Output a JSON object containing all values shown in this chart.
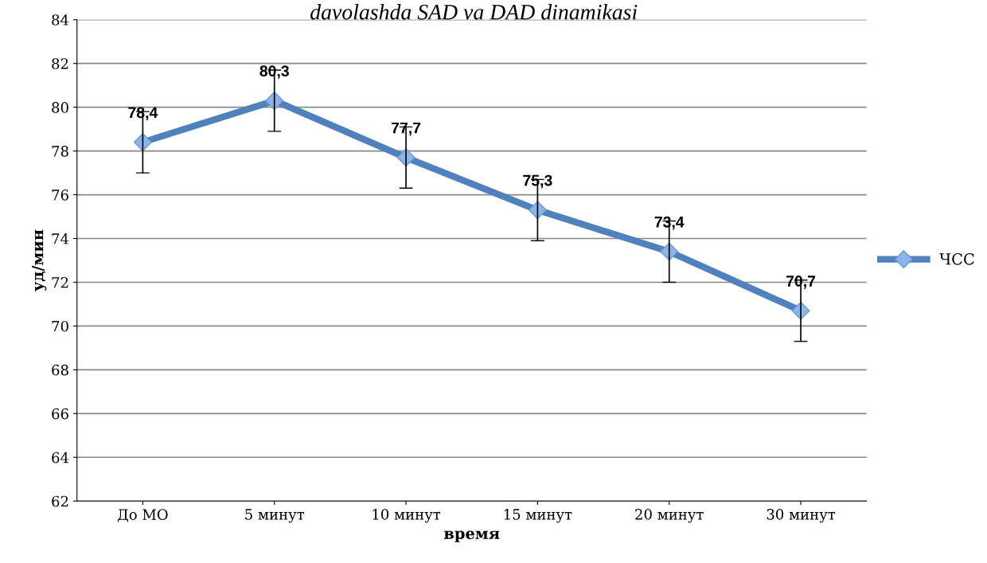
{
  "chart_data": {
    "type": "line",
    "title": "davolashda SAD va DAD dinamikasi",
    "xlabel": "время",
    "ylabel": "уд/мин",
    "categories": [
      "До МО",
      "5 минут",
      "10 минут",
      "15 минут",
      "20 минут",
      "30 минут"
    ],
    "series": [
      {
        "name": "ЧСС",
        "color": "#4f81bd",
        "values": [
          78.4,
          80.3,
          77.7,
          75.3,
          73.4,
          70.7
        ],
        "errors": [
          1.4,
          1.4,
          1.4,
          1.4,
          1.4,
          1.4
        ],
        "value_labels": [
          "78,4",
          "80,3",
          "77,7",
          "75,3",
          "73,4",
          "70,7"
        ]
      }
    ],
    "ylim": [
      62,
      84
    ],
    "yticks": [
      62,
      64,
      66,
      68,
      70,
      72,
      74,
      76,
      78,
      80,
      82,
      84
    ],
    "grid": "y",
    "legend": "right",
    "marker": "diamond",
    "line_style": "solid"
  }
}
